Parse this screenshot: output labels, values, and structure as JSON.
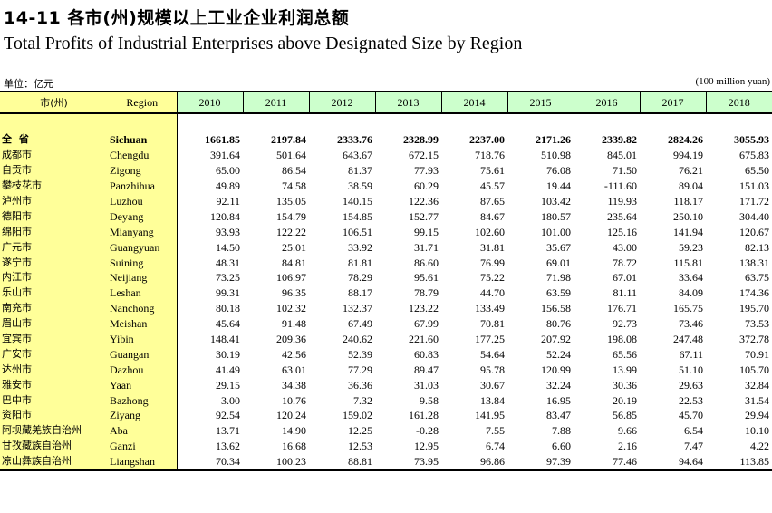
{
  "title_zh": "14-11  各市(州)规模以上工业企业利润总额",
  "title_en": "Total Profits of Industrial Enterprises above Designated Size by Region",
  "unit_zh": "单位：亿元",
  "unit_en": "(100 million yuan)",
  "header": {
    "city_zh": "市(州)",
    "region": "Region",
    "years": [
      "2010",
      "2011",
      "2012",
      "2013",
      "2014",
      "2015",
      "2016",
      "2017",
      "2018"
    ]
  },
  "total": {
    "zh": "全 省",
    "en": "Sichuan",
    "values": [
      "1661.85",
      "2197.84",
      "2333.76",
      "2328.99",
      "2237.00",
      "2171.26",
      "2339.82",
      "2824.26",
      "3055.93"
    ]
  },
  "rows": [
    {
      "zh": "成都市",
      "en": "Chengdu",
      "values": [
        "391.64",
        "501.64",
        "643.67",
        "672.15",
        "718.76",
        "510.98",
        "845.01",
        "994.19",
        "675.83"
      ]
    },
    {
      "zh": "自贡市",
      "en": "Zigong",
      "values": [
        "65.00",
        "86.54",
        "81.37",
        "77.93",
        "75.61",
        "76.08",
        "71.50",
        "76.21",
        "65.50"
      ]
    },
    {
      "zh": "攀枝花市",
      "en": "Panzhihua",
      "values": [
        "49.89",
        "74.58",
        "38.59",
        "60.29",
        "45.57",
        "19.44",
        "-111.60",
        "89.04",
        "151.03"
      ]
    },
    {
      "zh": "泸州市",
      "en": "Luzhou",
      "values": [
        "92.11",
        "135.05",
        "140.15",
        "122.36",
        "87.65",
        "103.42",
        "119.93",
        "118.17",
        "171.72"
      ]
    },
    {
      "zh": "德阳市",
      "en": "Deyang",
      "values": [
        "120.84",
        "154.79",
        "154.85",
        "152.77",
        "84.67",
        "180.57",
        "235.64",
        "250.10",
        "304.40"
      ]
    },
    {
      "zh": "绵阳市",
      "en": "Mianyang",
      "values": [
        "93.93",
        "122.22",
        "106.51",
        "99.15",
        "102.60",
        "101.00",
        "125.16",
        "141.94",
        "120.67"
      ]
    },
    {
      "zh": "广元市",
      "en": "Guangyuan",
      "values": [
        "14.50",
        "25.01",
        "33.92",
        "31.71",
        "31.81",
        "35.67",
        "43.00",
        "59.23",
        "82.13"
      ]
    },
    {
      "zh": "遂宁市",
      "en": "Suining",
      "values": [
        "48.31",
        "84.81",
        "81.81",
        "86.60",
        "76.99",
        "69.01",
        "78.72",
        "115.81",
        "138.31"
      ]
    },
    {
      "zh": "内江市",
      "en": "Neijiang",
      "values": [
        "73.25",
        "106.97",
        "78.29",
        "95.61",
        "75.22",
        "71.98",
        "67.01",
        "33.64",
        "63.75"
      ]
    },
    {
      "zh": "乐山市",
      "en": "Leshan",
      "values": [
        "99.31",
        "96.35",
        "88.17",
        "78.79",
        "44.70",
        "63.59",
        "81.11",
        "84.09",
        "174.36"
      ]
    },
    {
      "zh": "南充市",
      "en": "Nanchong",
      "values": [
        "80.18",
        "102.32",
        "132.37",
        "123.22",
        "133.49",
        "156.58",
        "176.71",
        "165.75",
        "195.70"
      ]
    },
    {
      "zh": "眉山市",
      "en": "Meishan",
      "values": [
        "45.64",
        "91.48",
        "67.49",
        "67.99",
        "70.81",
        "80.76",
        "92.73",
        "73.46",
        "73.53"
      ]
    },
    {
      "zh": "宜宾市",
      "en": "Yibin",
      "values": [
        "148.41",
        "209.36",
        "240.62",
        "221.60",
        "177.25",
        "207.92",
        "198.08",
        "247.48",
        "372.78"
      ]
    },
    {
      "zh": "广安市",
      "en": "Guangan",
      "values": [
        "30.19",
        "42.56",
        "52.39",
        "60.83",
        "54.64",
        "52.24",
        "65.56",
        "67.11",
        "70.91"
      ]
    },
    {
      "zh": "达州市",
      "en": "Dazhou",
      "values": [
        "41.49",
        "63.01",
        "77.29",
        "89.47",
        "95.78",
        "120.99",
        "13.99",
        "51.10",
        "105.70"
      ]
    },
    {
      "zh": "雅安市",
      "en": "Yaan",
      "values": [
        "29.15",
        "34.38",
        "36.36",
        "31.03",
        "30.67",
        "32.24",
        "30.36",
        "29.63",
        "32.84"
      ]
    },
    {
      "zh": "巴中市",
      "en": "Bazhong",
      "values": [
        "3.00",
        "10.76",
        "7.32",
        "9.58",
        "13.84",
        "16.95",
        "20.19",
        "22.53",
        "31.54"
      ]
    },
    {
      "zh": "资阳市",
      "en": "Ziyang",
      "values": [
        "92.54",
        "120.24",
        "159.02",
        "161.28",
        "141.95",
        "83.47",
        "56.85",
        "45.70",
        "29.94"
      ]
    },
    {
      "zh": "阿坝藏羌族自治州",
      "en": "Aba",
      "values": [
        "13.71",
        "14.90",
        "12.25",
        "-0.28",
        "7.55",
        "7.88",
        "9.66",
        "6.54",
        "10.10"
      ]
    },
    {
      "zh": "甘孜藏族自治州",
      "en": "Ganzi",
      "values": [
        "13.62",
        "16.68",
        "12.53",
        "12.95",
        "6.74",
        "6.60",
        "2.16",
        "7.47",
        "4.22"
      ]
    },
    {
      "zh": "凉山彝族自治州",
      "en": "Liangshan",
      "values": [
        "70.34",
        "100.23",
        "88.81",
        "73.95",
        "96.86",
        "97.39",
        "77.46",
        "94.64",
        "113.85"
      ]
    }
  ],
  "colors": {
    "label_bg": "#ffff99",
    "year_header_bg": "#ccffcc"
  }
}
